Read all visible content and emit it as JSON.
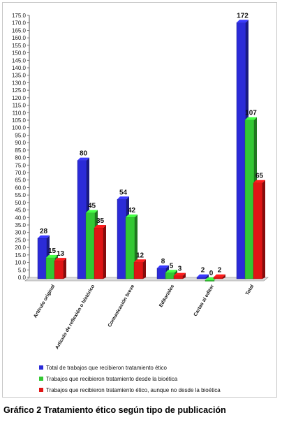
{
  "chart_data": {
    "type": "bar",
    "categories": [
      "Artículo original",
      "Artículo de reflexión o histórico",
      "Comunicación breve",
      "Editoriales",
      "Cartas al editor",
      "Total"
    ],
    "series": [
      {
        "name": "Total de trabajos que  recibieron  tratamiento ético",
        "color": "#2b2bd8",
        "values": [
          28,
          80,
          54,
          8,
          2,
          172
        ]
      },
      {
        "name": "Trabajos que recibieron tratamiento desde la bioética",
        "color": "#33c833",
        "values": [
          15,
          45,
          42,
          5,
          0,
          107
        ]
      },
      {
        "name": "Trabajos que recibieron tratamiento ético, aunque no  desde la bioética",
        "color": "#e01515",
        "values": [
          13,
          35,
          12,
          3,
          2,
          65
        ]
      }
    ],
    "ylim": [
      0,
      175
    ],
    "ytick_step": 5,
    "title": "Gráfico 2  Tratamiento ético según tipo de publicación",
    "xlabel": "",
    "ylabel": "",
    "legend_position": "bottom",
    "grid": false
  }
}
